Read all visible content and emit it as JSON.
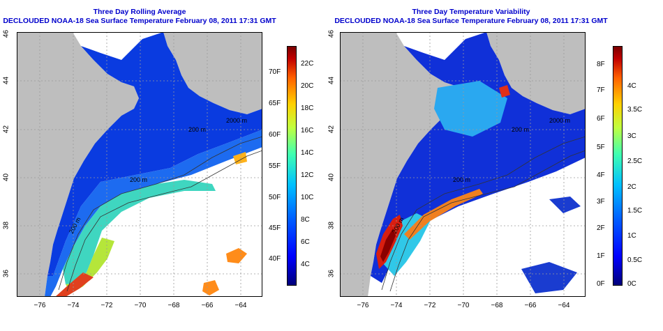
{
  "panels": [
    {
      "title_line1": "Three Day Rolling Average",
      "title_line2": "DECLOUDED NOAA-18 Sea Surface Temperature February 08, 2011 17:31 GMT",
      "colorbar_f_labels": [
        "70F",
        "65F",
        "60F",
        "55F",
        "50F",
        "45F",
        "40F"
      ],
      "colorbar_c_labels": [
        "22C",
        "20C",
        "18C",
        "16C",
        "14C",
        "12C",
        "10C",
        "8C",
        "6C",
        "4C"
      ],
      "contour_labels": [
        "200 m",
        "2000 m",
        "200 m",
        "200 m"
      ]
    },
    {
      "title_line1": "Three Day Temperature Variability",
      "title_line2": "DECLOUDED NOAA-18 Sea Surface Temperature February 08, 2011 17:31 GMT",
      "colorbar_f_labels": [
        "8F",
        "7F",
        "6F",
        "5F",
        "4F",
        "3F",
        "2F",
        "1F",
        "0F"
      ],
      "colorbar_c_labels": [
        "4C",
        "3.5C",
        "3C",
        "2.5C",
        "2C",
        "1.5C",
        "1C",
        "0.5C",
        "0C"
      ],
      "contour_labels": [
        "200 m",
        "2000 m",
        "200 m",
        "200 m"
      ]
    }
  ],
  "axes": {
    "lat_ticks": [
      "46",
      "44",
      "42",
      "40",
      "38",
      "36"
    ],
    "lon_ticks": [
      "−76",
      "−74",
      "−72",
      "−70",
      "−68",
      "−66",
      "−64"
    ]
  },
  "colors": {
    "land": "#bebebe",
    "ocean_nodata": "#ffffff",
    "title": "#0000cc"
  }
}
